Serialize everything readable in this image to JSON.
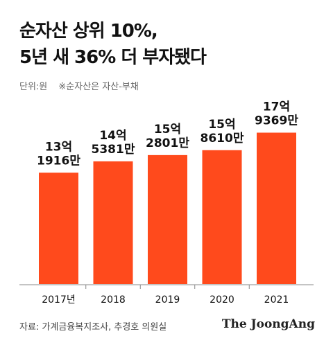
{
  "title_lines": [
    "순자산 상위 10%,",
    "5년 새 36% 더 부자됐다"
  ],
  "unit_label": "단위:원",
  "note": "※순자산은 자산-부채",
  "source": "자료: 가계금융복지조사, 추경호 의원실",
  "brand": "The JoongAng",
  "colors": {
    "bar": "#ff4a1c",
    "text": "#111111",
    "axis": "#888888"
  },
  "chart_data": {
    "type": "bar",
    "categories": [
      "2017년",
      "2018",
      "2019",
      "2020",
      "2021"
    ],
    "values": [
      1319160000,
      1453810000,
      1528010000,
      1586100000,
      1793690000
    ],
    "data_labels": [
      [
        "13억",
        "1916만"
      ],
      [
        "14억",
        "5381만"
      ],
      [
        "15억",
        "2801만"
      ],
      [
        "15억",
        "8610만"
      ],
      [
        "17억",
        "9369만"
      ]
    ],
    "title": "",
    "xlabel": "",
    "ylabel": "",
    "ylim": [
      0,
      1950000000
    ],
    "grid": false,
    "legend": "none"
  }
}
